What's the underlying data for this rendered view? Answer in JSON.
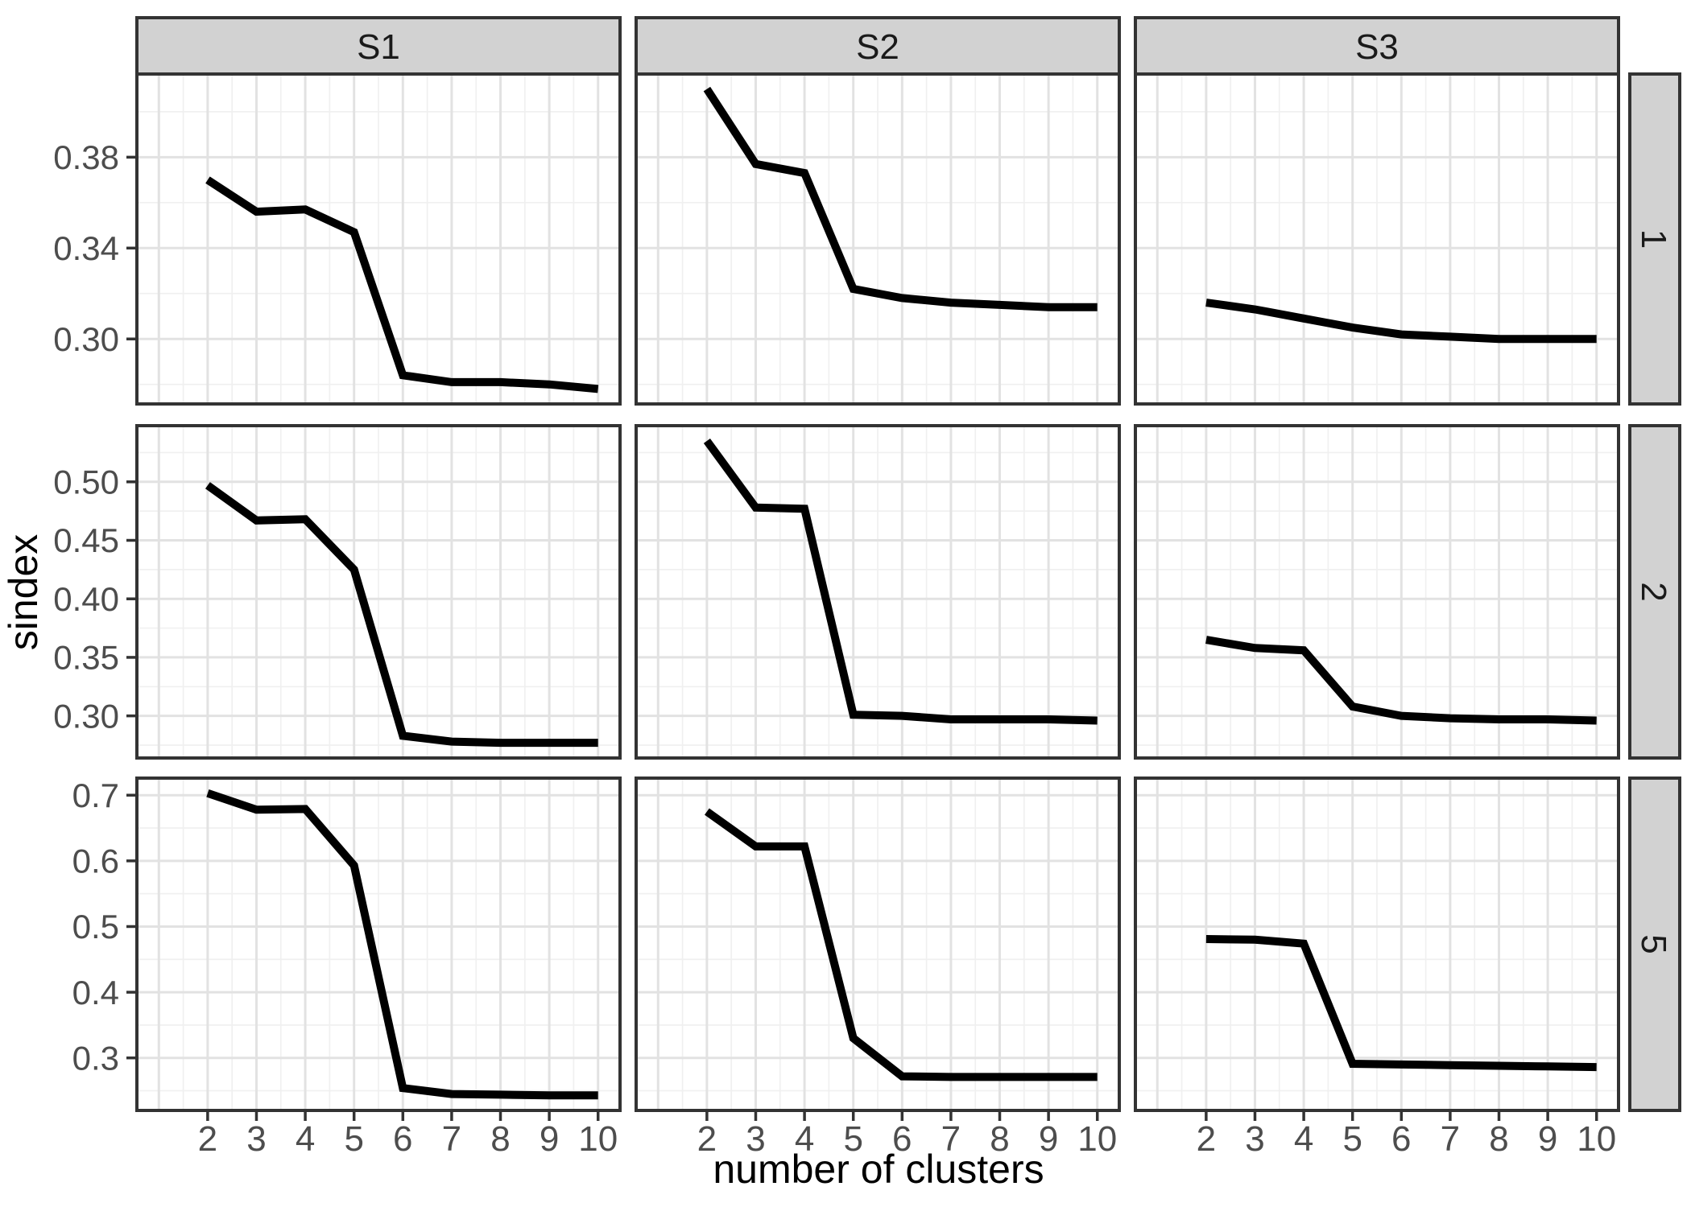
{
  "figure": {
    "xlabel": "number of clusters",
    "ylabel": "sindex",
    "facet_columns": [
      "S1",
      "S2",
      "S3"
    ],
    "facet_rows": [
      "1",
      "2",
      "5"
    ]
  },
  "chart_data": {
    "type": "line",
    "title": "",
    "xlabel": "number of clusters",
    "ylabel": "sindex",
    "facet_columns": [
      "S1",
      "S2",
      "S3"
    ],
    "x": [
      2,
      3,
      4,
      5,
      6,
      7,
      8,
      9,
      10
    ],
    "x_domain": [
      0.55,
      10.45
    ],
    "x_ticks": [
      2,
      3,
      4,
      5,
      6,
      7,
      8,
      9,
      10
    ],
    "x_tick_labels": [
      "2",
      "3",
      "4",
      "5",
      "6",
      "7",
      "8",
      "9",
      "10"
    ],
    "x_grid_major": [
      1,
      2,
      3,
      4,
      5,
      6,
      7,
      8,
      9,
      10
    ],
    "x_grid_minor": [
      1.5,
      2.5,
      3.5,
      4.5,
      5.5,
      6.5,
      7.5,
      8.5,
      9.5
    ],
    "grid": true,
    "legend": "none",
    "rows": [
      {
        "facet_label": "1",
        "y_domain": [
          0.2714,
          0.4166
        ],
        "y_ticks": [
          0.3,
          0.34,
          0.38
        ],
        "y_tick_labels": [
          "0.30",
          "0.34",
          "0.38"
        ],
        "y_grid_minor": [
          0.28,
          0.32,
          0.36,
          0.4
        ],
        "series": [
          {
            "facet_col": "S1",
            "values": [
              0.37,
              0.356,
              0.357,
              0.347,
              0.284,
              0.281,
              0.281,
              0.28,
              0.278
            ]
          },
          {
            "facet_col": "S2",
            "values": [
              0.41,
              0.377,
              0.373,
              0.322,
              0.318,
              0.316,
              0.315,
              0.314,
              0.314
            ]
          },
          {
            "facet_col": "S3",
            "values": [
              0.316,
              0.313,
              0.309,
              0.305,
              0.302,
              0.301,
              0.3,
              0.3,
              0.3
            ]
          }
        ]
      },
      {
        "facet_label": "2",
        "y_domain": [
          0.264,
          0.548
        ],
        "y_ticks": [
          0.3,
          0.35,
          0.4,
          0.45,
          0.5
        ],
        "y_tick_labels": [
          "0.30",
          "0.35",
          "0.40",
          "0.45",
          "0.50"
        ],
        "y_grid_minor": [
          0.275,
          0.325,
          0.375,
          0.425,
          0.475,
          0.525
        ],
        "series": [
          {
            "facet_col": "S1",
            "values": [
              0.497,
              0.467,
              0.468,
              0.425,
              0.283,
              0.278,
              0.277,
              0.277,
              0.277
            ]
          },
          {
            "facet_col": "S2",
            "values": [
              0.535,
              0.478,
              0.477,
              0.301,
              0.3,
              0.297,
              0.297,
              0.297,
              0.296
            ]
          },
          {
            "facet_col": "S3",
            "values": [
              0.365,
              0.358,
              0.356,
              0.308,
              0.3,
              0.298,
              0.297,
              0.297,
              0.296
            ]
          }
        ]
      },
      {
        "facet_label": "5",
        "y_domain": [
          0.22,
          0.726
        ],
        "y_ticks": [
          0.3,
          0.4,
          0.5,
          0.6,
          0.7
        ],
        "y_tick_labels": [
          "0.3",
          "0.4",
          "0.5",
          "0.6",
          "0.7"
        ],
        "y_grid_minor": [
          0.25,
          0.35,
          0.45,
          0.55,
          0.65
        ],
        "series": [
          {
            "facet_col": "S1",
            "values": [
              0.703,
              0.678,
              0.679,
              0.593,
              0.254,
              0.245,
              0.244,
              0.243,
              0.243
            ]
          },
          {
            "facet_col": "S2",
            "values": [
              0.675,
              0.622,
              0.622,
              0.33,
              0.272,
              0.271,
              0.271,
              0.271,
              0.271
            ]
          },
          {
            "facet_col": "S3",
            "values": [
              0.481,
              0.48,
              0.474,
              0.291,
              0.29,
              0.289,
              0.288,
              0.287,
              0.286
            ]
          }
        ]
      }
    ],
    "colors": {
      "line": "#000000",
      "panel_bg": "#FFFFFF",
      "panel_border": "#333333",
      "strip_fill": "#D2D2D2",
      "strip_border": "#333333",
      "grid_major": "#E2E2E2",
      "grid_minor": "#F0F0F0",
      "tick_mark": "#333333",
      "tick_label": "#4D4D4D",
      "axis_title": "#000000",
      "background": "#FFFFFF"
    }
  }
}
